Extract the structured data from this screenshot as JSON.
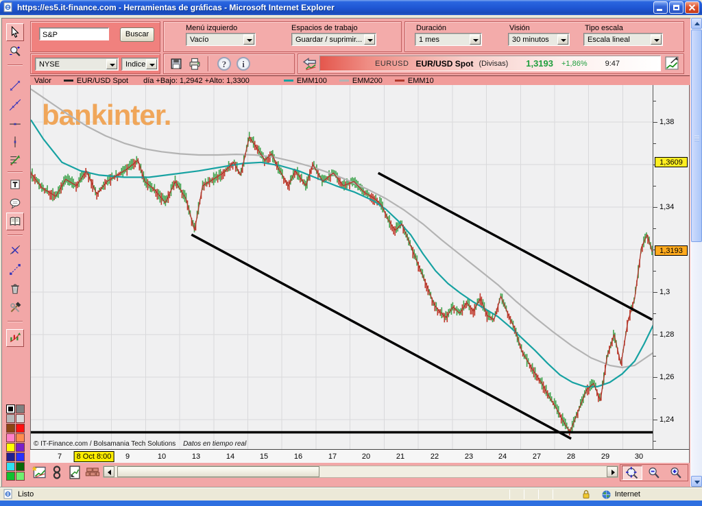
{
  "window": {
    "title": "https://es5.it-finance.com - Herramientas de gráficas - Microsoft Internet Explorer"
  },
  "search": {
    "value": "S&P",
    "button_label": "Buscar",
    "exchange_value": "NYSE",
    "type_value": "Indice"
  },
  "controls": {
    "menu_left": {
      "label": "Menú izquierdo",
      "value": "Vacío"
    },
    "workspaces": {
      "label": "Espacios de trabajo",
      "value": "Guardar / suprimir..."
    },
    "duration": {
      "label": "Duración",
      "value": "1 mes"
    },
    "vision": {
      "label": "Visión",
      "value": "30 minutos"
    },
    "scale_type": {
      "label": "Tipo escala",
      "value": "Escala lineal"
    }
  },
  "icon_glyphs": {
    "help": "?",
    "info": "i"
  },
  "quote": {
    "symbol": "EURUSD",
    "name": "EUR/USD Spot",
    "category": "(Divisas)",
    "price": "1,3193",
    "change": "+1,86%",
    "time": "9:47",
    "price_color": "#1f9e3c"
  },
  "legend": {
    "title": "Valor",
    "price_label": "EUR/USD Spot",
    "stats": "día +Bajo: 1,2942 +Alto: 1,3300",
    "emm100": "EMM100",
    "emm200": "EMM200",
    "emm10": "EMM10"
  },
  "watermark": "bankinter.",
  "chart_footer": {
    "copyright": "© IT-Finance.com / Bolsamania Tech Solutions",
    "realtime": "Datos en tiempo real"
  },
  "statusbar": {
    "status": "Listo",
    "zone": "Internet"
  },
  "palette": {
    "colors": [
      "#000000",
      "#808080",
      "#b8b8b8",
      "#d8d8d8",
      "#8b4513",
      "#ff1010",
      "#ff80c8",
      "#ff8c50",
      "#ffff00",
      "#7a20c8",
      "#202090",
      "#2830ff",
      "#30e0f0",
      "#086808",
      "#10c030",
      "#70f070"
    ],
    "selected_index": 0
  },
  "tool_icons": [
    "cursor",
    "zoom",
    "trend-segment",
    "trend-line",
    "horizontal-line",
    "vertical-line",
    "fibonacci",
    "text",
    "comment",
    "book",
    "delete-line",
    "move-points",
    "trash",
    "settings-tools",
    "chart-style"
  ],
  "bottom_icons": [
    "new-chart",
    "link",
    "report",
    "bricks",
    "zoom-fit",
    "zoom-out",
    "zoom-in"
  ],
  "chart_data": {
    "type": "candlestick",
    "symbol": "EUR/USD Spot",
    "period": "30 minutos",
    "duration": "1 mes",
    "background": "#f0f0f1",
    "grid_color": "#d9d9db",
    "watermark_color": "#f0a352",
    "y_axis": {
      "range_top": 1.3974,
      "range_bottom": 1.2261,
      "grid_step": 0.02,
      "minor_tick_step": 0.01,
      "labels": [
        {
          "text": "1,38",
          "value": 1.38
        },
        {
          "text": "1,34",
          "value": 1.34
        },
        {
          "text": "1,3",
          "value": 1.3
        },
        {
          "text": "1,28",
          "value": 1.28
        },
        {
          "text": "1,26",
          "value": 1.26
        },
        {
          "text": "1,24",
          "value": 1.24
        }
      ],
      "badges": [
        {
          "text": "1,3609",
          "value": 1.3609,
          "color": "#ffee22"
        },
        {
          "text": "1,3193",
          "value": 1.3193,
          "color": "#ffaa1e"
        }
      ]
    },
    "x_axis": {
      "labels": [
        "7",
        "8 Oct 8:00",
        "9",
        "10",
        "13",
        "14",
        "15",
        "16",
        "17",
        "20",
        "21",
        "22",
        "23",
        "24",
        "27",
        "28",
        "29",
        "30"
      ],
      "badge_index": 1,
      "badge_color": "#ffee00"
    },
    "series": {
      "price": {
        "name": "EUR/USD Spot",
        "up_color": "#3fa34d",
        "down_color": "#c0392b",
        "points": [
          [
            0,
            1.356
          ],
          [
            0.018,
            1.349
          ],
          [
            0.04,
            1.345
          ],
          [
            0.056,
            1.353
          ],
          [
            0.073,
            1.35
          ],
          [
            0.089,
            1.357
          ],
          [
            0.106,
            1.346
          ],
          [
            0.122,
            1.352
          ],
          [
            0.139,
            1.355
          ],
          [
            0.155,
            1.358
          ],
          [
            0.172,
            1.362
          ],
          [
            0.183,
            1.352
          ],
          [
            0.199,
            1.348
          ],
          [
            0.216,
            1.342
          ],
          [
            0.232,
            1.352
          ],
          [
            0.249,
            1.344
          ],
          [
            0.263,
            1.329
          ],
          [
            0.276,
            1.35
          ],
          [
            0.293,
            1.353
          ],
          [
            0.309,
            1.356
          ],
          [
            0.326,
            1.361
          ],
          [
            0.337,
            1.355
          ],
          [
            0.351,
            1.373
          ],
          [
            0.365,
            1.367
          ],
          [
            0.376,
            1.362
          ],
          [
            0.387,
            1.365
          ],
          [
            0.398,
            1.358
          ],
          [
            0.414,
            1.35
          ],
          [
            0.425,
            1.357
          ],
          [
            0.442,
            1.35
          ],
          [
            0.453,
            1.36
          ],
          [
            0.469,
            1.352
          ],
          [
            0.486,
            1.356
          ],
          [
            0.502,
            1.35
          ],
          [
            0.519,
            1.352
          ],
          [
            0.535,
            1.347
          ],
          [
            0.552,
            1.344
          ],
          [
            0.563,
            1.341
          ],
          [
            0.574,
            1.334
          ],
          [
            0.585,
            1.329
          ],
          [
            0.596,
            1.332
          ],
          [
            0.607,
            1.324
          ],
          [
            0.618,
            1.316
          ],
          [
            0.629,
            1.308
          ],
          [
            0.64,
            1.3
          ],
          [
            0.648,
            1.294
          ],
          [
            0.656,
            1.291
          ],
          [
            0.667,
            1.288
          ],
          [
            0.678,
            1.293
          ],
          [
            0.689,
            1.29
          ],
          [
            0.7,
            1.295
          ],
          [
            0.711,
            1.291
          ],
          [
            0.722,
            1.297
          ],
          [
            0.733,
            1.289
          ],
          [
            0.744,
            1.287
          ],
          [
            0.755,
            1.298
          ],
          [
            0.766,
            1.29
          ],
          [
            0.777,
            1.283
          ],
          [
            0.789,
            1.272
          ],
          [
            0.805,
            1.264
          ],
          [
            0.821,
            1.257
          ],
          [
            0.832,
            1.251
          ],
          [
            0.843,
            1.246
          ],
          [
            0.854,
            1.24
          ],
          [
            0.866,
            1.234
          ],
          [
            0.874,
            1.24
          ],
          [
            0.882,
            1.246
          ],
          [
            0.893,
            1.254
          ],
          [
            0.904,
            1.257
          ],
          [
            0.915,
            1.249
          ],
          [
            0.926,
            1.27
          ],
          [
            0.937,
            1.28
          ],
          [
            0.948,
            1.266
          ],
          [
            0.959,
            1.286
          ],
          [
            0.97,
            1.297
          ],
          [
            0.981,
            1.321
          ],
          [
            0.99,
            1.327
          ],
          [
            0.998,
            1.319
          ]
        ]
      },
      "emm10": {
        "name": "EMM10",
        "color": "#b03a2e"
      },
      "emm100": {
        "name": "EMM100",
        "color": "#17a2a2",
        "points": [
          [
            0,
            1.381
          ],
          [
            0.02,
            1.372
          ],
          [
            0.05,
            1.361
          ],
          [
            0.08,
            1.357
          ],
          [
            0.11,
            1.355
          ],
          [
            0.15,
            1.354
          ],
          [
            0.19,
            1.354
          ],
          [
            0.23,
            1.3555
          ],
          [
            0.27,
            1.357
          ],
          [
            0.31,
            1.359
          ],
          [
            0.34,
            1.3605
          ],
          [
            0.37,
            1.361
          ],
          [
            0.4,
            1.3595
          ],
          [
            0.43,
            1.357
          ],
          [
            0.46,
            1.3535
          ],
          [
            0.49,
            1.35
          ],
          [
            0.52,
            1.347
          ],
          [
            0.55,
            1.343
          ],
          [
            0.57,
            1.339
          ],
          [
            0.59,
            1.3335
          ],
          [
            0.61,
            1.327
          ],
          [
            0.63,
            1.318
          ],
          [
            0.65,
            1.31
          ],
          [
            0.67,
            1.304
          ],
          [
            0.69,
            1.2995
          ],
          [
            0.71,
            1.2955
          ],
          [
            0.73,
            1.292
          ],
          [
            0.75,
            1.2885
          ],
          [
            0.77,
            1.2835
          ],
          [
            0.79,
            1.278
          ],
          [
            0.81,
            1.2725
          ],
          [
            0.83,
            1.2665
          ],
          [
            0.85,
            1.261
          ],
          [
            0.87,
            1.2575
          ],
          [
            0.89,
            1.2555
          ],
          [
            0.91,
            1.2555
          ],
          [
            0.93,
            1.2575
          ],
          [
            0.95,
            1.2615
          ],
          [
            0.97,
            1.2675
          ],
          [
            0.985,
            1.2755
          ],
          [
            1,
            1.2845
          ]
        ]
      },
      "emm200": {
        "name": "EMM200",
        "color": "#b3b3b3",
        "points": [
          [
            0,
            1.3955
          ],
          [
            0.03,
            1.3895
          ],
          [
            0.06,
            1.3835
          ],
          [
            0.09,
            1.378
          ],
          [
            0.12,
            1.3735
          ],
          [
            0.15,
            1.37
          ],
          [
            0.18,
            1.3675
          ],
          [
            0.21,
            1.366
          ],
          [
            0.24,
            1.365
          ],
          [
            0.27,
            1.3645
          ],
          [
            0.3,
            1.3645
          ],
          [
            0.33,
            1.3648
          ],
          [
            0.36,
            1.3645
          ],
          [
            0.39,
            1.3635
          ],
          [
            0.42,
            1.3615
          ],
          [
            0.45,
            1.359
          ],
          [
            0.48,
            1.356
          ],
          [
            0.51,
            1.3525
          ],
          [
            0.54,
            1.3485
          ],
          [
            0.57,
            1.344
          ],
          [
            0.6,
            1.3385
          ],
          [
            0.63,
            1.332
          ],
          [
            0.66,
            1.3245
          ],
          [
            0.69,
            1.3175
          ],
          [
            0.72,
            1.3105
          ],
          [
            0.75,
            1.3035
          ],
          [
            0.78,
            1.2955
          ],
          [
            0.81,
            1.288
          ],
          [
            0.84,
            1.281
          ],
          [
            0.87,
            1.2745
          ],
          [
            0.9,
            1.269
          ],
          [
            0.93,
            1.2655
          ],
          [
            0.95,
            1.2645
          ],
          [
            0.97,
            1.2655
          ],
          [
            1,
            1.2715
          ]
        ]
      }
    },
    "trendlines": [
      {
        "x1": 0.258,
        "price1": 1.327,
        "x2": 0.868,
        "price2": 1.231,
        "color": "#000000",
        "width": 3.5
      },
      {
        "x1": 0.558,
        "price1": 1.356,
        "x2": 0.998,
        "price2": 1.287,
        "color": "#000000",
        "width": 3.5
      },
      {
        "x1": 0.0,
        "price1": 1.234,
        "x2": 1.0,
        "price2": 1.234,
        "color": "#000000",
        "width": 3.5
      }
    ]
  }
}
